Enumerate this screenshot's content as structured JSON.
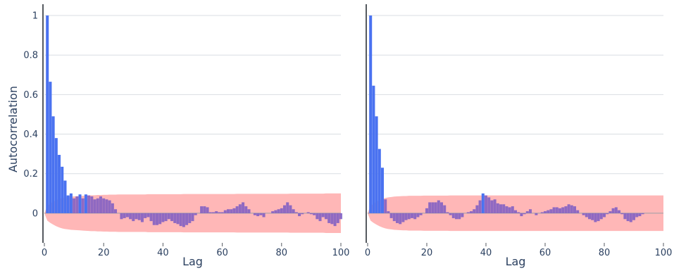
{
  "chart_data": [
    {
      "type": "bar",
      "ylabel": "Autocorrelation",
      "xlabel": "Lag",
      "xlim": [
        0,
        100
      ],
      "ylim": [
        -0.15,
        1.05
      ],
      "xticks": [
        "0",
        "20",
        "40",
        "60",
        "80",
        "100"
      ],
      "yticks": [
        "0",
        "0.2",
        "0.4",
        "0.6",
        "0.8",
        "1"
      ],
      "grid": true,
      "colors": {
        "bar_in": "#7b5cc4",
        "bar_out": "#4a72f0",
        "band": "#ffb3b3"
      },
      "lags": [
        0,
        1,
        2,
        3,
        4,
        5,
        6,
        7,
        8,
        9,
        10,
        11,
        12,
        13,
        14,
        15,
        16,
        17,
        18,
        19,
        20,
        21,
        22,
        23,
        24,
        25,
        26,
        27,
        28,
        29,
        30,
        31,
        32,
        33,
        34,
        35,
        36,
        37,
        38,
        39,
        40,
        41,
        42,
        43,
        44,
        45,
        46,
        47,
        48,
        49,
        50,
        51,
        52,
        53,
        54,
        55,
        56,
        57,
        58,
        59,
        60,
        61,
        62,
        63,
        64,
        65,
        66,
        67,
        68,
        69,
        70,
        71,
        72,
        73,
        74,
        75,
        76,
        77,
        78,
        79,
        80,
        81,
        82,
        83,
        84,
        85,
        86,
        87,
        88,
        89,
        90,
        91,
        92,
        93,
        94,
        95,
        96,
        97,
        98,
        99,
        100
      ],
      "values": [
        0,
        1.0,
        0.665,
        0.49,
        0.38,
        0.295,
        0.235,
        0.165,
        0.09,
        0.1,
        0.075,
        0.085,
        0.095,
        0.075,
        0.095,
        0.09,
        0.085,
        0.07,
        0.075,
        0.085,
        0.075,
        0.07,
        0.065,
        0.05,
        0.02,
        0.0,
        -0.03,
        -0.025,
        -0.02,
        -0.03,
        -0.04,
        -0.03,
        -0.035,
        -0.045,
        -0.025,
        -0.02,
        -0.04,
        -0.06,
        -0.06,
        -0.055,
        -0.045,
        -0.04,
        -0.03,
        -0.04,
        -0.05,
        -0.055,
        -0.065,
        -0.07,
        -0.06,
        -0.05,
        -0.04,
        -0.01,
        0.0,
        0.035,
        0.035,
        0.03,
        0.005,
        0.005,
        0.01,
        0.005,
        0.005,
        0.015,
        0.02,
        0.02,
        0.025,
        0.035,
        0.045,
        0.055,
        0.035,
        0.02,
        0.0,
        -0.01,
        -0.015,
        -0.01,
        -0.02,
        0.0,
        0.0,
        0.01,
        0.015,
        0.02,
        0.025,
        0.04,
        0.055,
        0.04,
        0.02,
        0.005,
        -0.015,
        -0.005,
        0.0,
        0.005,
        -0.005,
        -0.01,
        -0.03,
        -0.04,
        -0.02,
        -0.03,
        -0.05,
        -0.055,
        -0.065,
        -0.05,
        -0.03
      ],
      "confint_half_width": [
        0.0,
        0.038,
        0.049,
        0.058,
        0.066,
        0.072,
        0.077,
        0.08,
        0.082,
        0.084,
        0.085,
        0.086,
        0.087,
        0.088,
        0.089,
        0.09,
        0.091,
        0.091,
        0.092,
        0.092,
        0.093,
        0.093,
        0.094,
        0.094,
        0.094,
        0.095,
        0.095,
        0.095,
        0.095,
        0.095,
        0.095,
        0.095,
        0.095,
        0.095,
        0.095,
        0.096,
        0.096,
        0.096,
        0.096,
        0.096,
        0.096,
        0.096,
        0.096,
        0.096,
        0.096,
        0.096,
        0.096,
        0.097,
        0.097,
        0.097,
        0.097,
        0.097,
        0.097,
        0.097,
        0.097,
        0.097,
        0.097,
        0.097,
        0.097,
        0.097,
        0.097,
        0.097,
        0.097,
        0.097,
        0.097,
        0.098,
        0.098,
        0.098,
        0.098,
        0.098,
        0.098,
        0.098,
        0.098,
        0.098,
        0.098,
        0.098,
        0.098,
        0.098,
        0.098,
        0.098,
        0.098,
        0.098,
        0.098,
        0.099,
        0.099,
        0.099,
        0.099,
        0.099,
        0.099,
        0.099,
        0.099,
        0.099,
        0.099,
        0.099,
        0.099,
        0.1,
        0.1,
        0.1,
        0.1,
        0.1,
        0.1
      ]
    },
    {
      "type": "bar",
      "ylabel": "",
      "xlabel": "Lag",
      "xlim": [
        0,
        100
      ],
      "ylim": [
        -0.15,
        1.05
      ],
      "xticks": [
        "0",
        "20",
        "40",
        "60",
        "80",
        "100"
      ],
      "yticks": [],
      "grid": true,
      "colors": {
        "bar_in": "#7b5cc4",
        "bar_out": "#4a72f0",
        "band": "#ffb3b3"
      },
      "lags": [
        0,
        1,
        2,
        3,
        4,
        5,
        6,
        7,
        8,
        9,
        10,
        11,
        12,
        13,
        14,
        15,
        16,
        17,
        18,
        19,
        20,
        21,
        22,
        23,
        24,
        25,
        26,
        27,
        28,
        29,
        30,
        31,
        32,
        33,
        34,
        35,
        36,
        37,
        38,
        39,
        40,
        41,
        42,
        43,
        44,
        45,
        46,
        47,
        48,
        49,
        50,
        51,
        52,
        53,
        54,
        55,
        56,
        57,
        58,
        59,
        60,
        61,
        62,
        63,
        64,
        65,
        66,
        67,
        68,
        69,
        70,
        71,
        72,
        73,
        74,
        75,
        76,
        77,
        78,
        79,
        80,
        81,
        82,
        83,
        84,
        85,
        86,
        87,
        88,
        89,
        90,
        91,
        92,
        93,
        94,
        95,
        96,
        97,
        98,
        99,
        100
      ],
      "values": [
        0,
        1.0,
        0.645,
        0.49,
        0.325,
        0.23,
        0.07,
        0.01,
        -0.025,
        -0.04,
        -0.05,
        -0.055,
        -0.045,
        -0.035,
        -0.03,
        -0.025,
        -0.03,
        -0.02,
        -0.01,
        0.0,
        0.025,
        0.055,
        0.055,
        0.055,
        0.065,
        0.055,
        0.04,
        0.005,
        -0.01,
        -0.025,
        -0.03,
        -0.03,
        -0.02,
        0.0,
        0.005,
        0.01,
        0.02,
        0.04,
        0.065,
        0.1,
        0.09,
        0.08,
        0.065,
        0.07,
        0.05,
        0.045,
        0.045,
        0.035,
        0.03,
        0.035,
        0.015,
        0.005,
        -0.015,
        -0.005,
        0.01,
        0.02,
        0.0,
        -0.01,
        0.0,
        0.005,
        0.01,
        0.015,
        0.02,
        0.03,
        0.03,
        0.025,
        0.03,
        0.035,
        0.045,
        0.04,
        0.035,
        0.015,
        0.0,
        -0.01,
        -0.02,
        -0.03,
        -0.035,
        -0.045,
        -0.04,
        -0.03,
        -0.02,
        -0.005,
        0.01,
        0.025,
        0.03,
        0.015,
        -0.005,
        -0.03,
        -0.04,
        -0.045,
        -0.035,
        -0.02,
        -0.015,
        -0.005,
        0.0,
        0.0,
        0.0,
        0.0,
        0.0,
        0.0,
        0.0
      ],
      "confint_half_width": [
        0.0,
        0.038,
        0.049,
        0.058,
        0.066,
        0.072,
        0.077,
        0.08,
        0.082,
        0.084,
        0.085,
        0.086,
        0.087,
        0.087,
        0.088,
        0.088,
        0.088,
        0.088,
        0.088,
        0.089,
        0.089,
        0.089,
        0.089,
        0.089,
        0.089,
        0.089,
        0.089,
        0.089,
        0.09,
        0.09,
        0.09,
        0.09,
        0.09,
        0.09,
        0.09,
        0.09,
        0.09,
        0.09,
        0.09,
        0.09,
        0.09,
        0.09,
        0.09,
        0.09,
        0.09,
        0.09,
        0.09,
        0.09,
        0.09,
        0.09,
        0.09,
        0.09,
        0.09,
        0.09,
        0.09,
        0.09,
        0.09,
        0.09,
        0.09,
        0.09,
        0.09,
        0.09,
        0.09,
        0.09,
        0.09,
        0.09,
        0.09,
        0.09,
        0.09,
        0.09,
        0.09,
        0.09,
        0.09,
        0.09,
        0.09,
        0.09,
        0.09,
        0.09,
        0.09,
        0.09,
        0.09,
        0.09,
        0.09,
        0.09,
        0.09,
        0.09,
        0.09,
        0.09,
        0.09,
        0.09,
        0.09,
        0.09,
        0.09,
        0.09,
        0.09,
        0.09,
        0.09,
        0.09,
        0.09,
        0.09,
        0.09
      ]
    }
  ]
}
